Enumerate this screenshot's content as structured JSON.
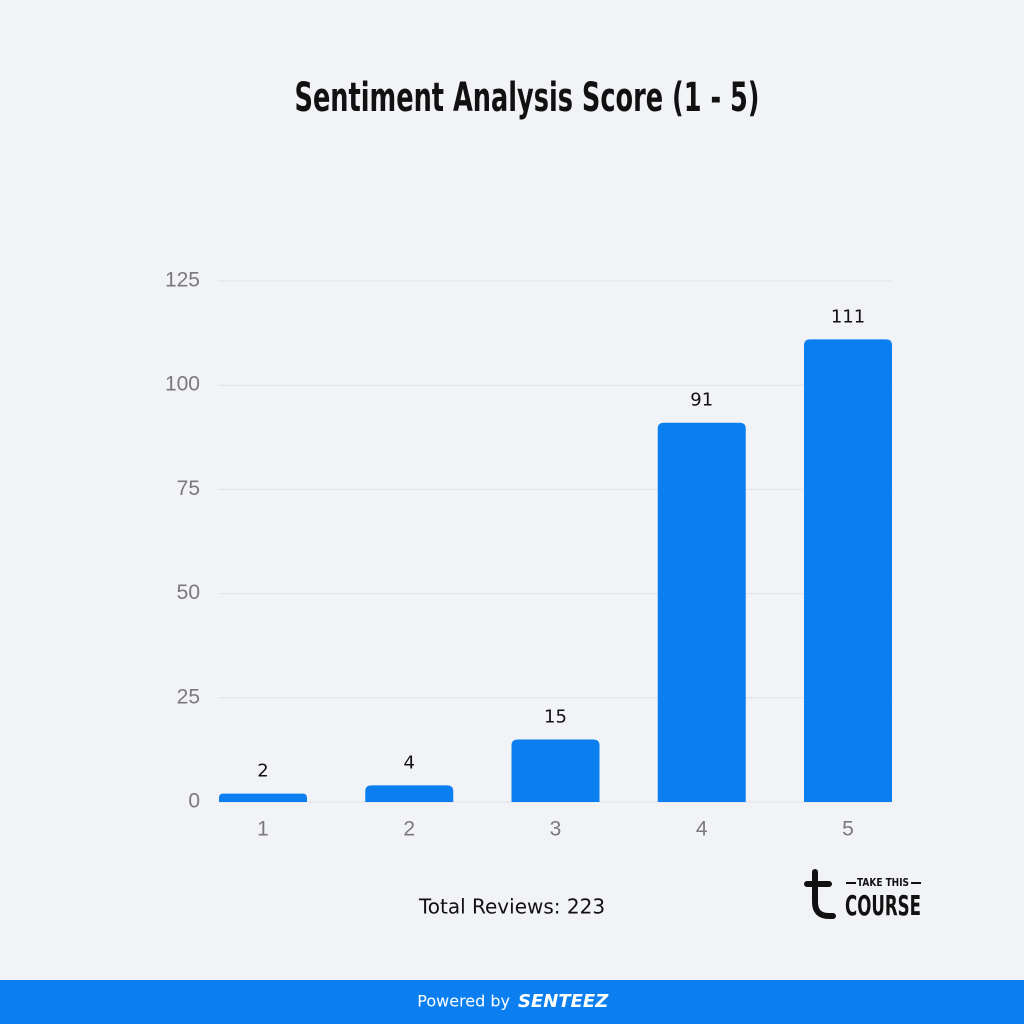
{
  "chart_data": {
    "type": "bar",
    "title": "Sentiment Analysis Score (1 - 5)",
    "categories": [
      "1",
      "2",
      "3",
      "4",
      "5"
    ],
    "values": [
      2,
      4,
      15,
      91,
      111
    ],
    "color": "#0b7ff0",
    "ylim": [
      0,
      125
    ],
    "yticks": [
      0,
      25,
      50,
      75,
      100,
      125
    ],
    "grid": true,
    "annotation": "Total Reviews: 223"
  },
  "branding": {
    "logo_top": "TAKE THIS",
    "logo_bottom": "COURSE",
    "footer_prefix": "Powered by",
    "footer_brand": "SENTEEZ"
  }
}
